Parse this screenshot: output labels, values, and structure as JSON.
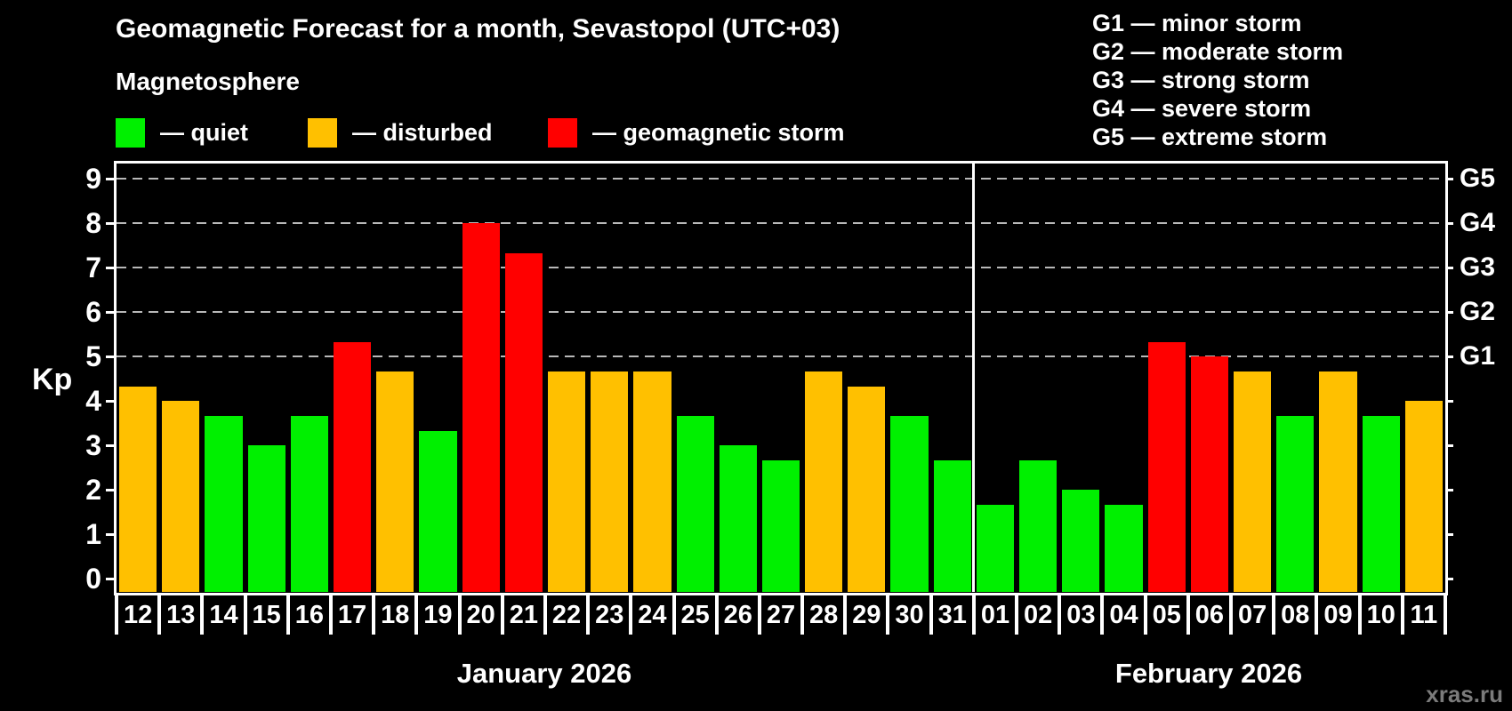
{
  "page": {
    "background": "#000000",
    "watermark": "xras.ru"
  },
  "header": {
    "title": "Geomagnetic Forecast for a month, Sevastopol (UTC+03)",
    "subtitle": "Magnetosphere",
    "series_legend": [
      {
        "name": "quiet",
        "label": "— quiet",
        "color": "#00F000"
      },
      {
        "name": "disturbed",
        "label": "— disturbed",
        "color": "#FFC000"
      },
      {
        "name": "storm",
        "label": "— geomagnetic storm",
        "color": "#FF0000"
      }
    ],
    "storm_scale_legend": [
      "G1 — minor storm",
      "G2 — moderate storm",
      "G3 — strong storm",
      "G4 — severe storm",
      "G5 — extreme storm"
    ]
  },
  "chart_data": {
    "type": "bar",
    "title": "Geomagnetic Forecast for a month, Sevastopol (UTC+03)",
    "subtitle": "Magnetosphere",
    "ylabel": "Kp",
    "ylim": [
      0,
      9
    ],
    "yticks": [
      0,
      1,
      2,
      3,
      4,
      5,
      6,
      7,
      8,
      9
    ],
    "grid": "dashed horizontal lines at Kp 5 to 9 only",
    "legend_position": "top",
    "right_axis": [
      {
        "label": "G1",
        "kp": 5
      },
      {
        "label": "G2",
        "kp": 6
      },
      {
        "label": "G3",
        "kp": 7
      },
      {
        "label": "G4",
        "kp": 8
      },
      {
        "label": "G5",
        "kp": 9
      }
    ],
    "level_colors": {
      "quiet": "#00F000",
      "disturbed": "#FFC000",
      "storm": "#FF0000"
    },
    "months": [
      {
        "label": "January 2026",
        "days": [
          {
            "day": "12",
            "kp": 4.33,
            "level": "disturbed"
          },
          {
            "day": "13",
            "kp": 4.0,
            "level": "disturbed"
          },
          {
            "day": "14",
            "kp": 3.67,
            "level": "quiet"
          },
          {
            "day": "15",
            "kp": 3.0,
            "level": "quiet"
          },
          {
            "day": "16",
            "kp": 3.67,
            "level": "quiet"
          },
          {
            "day": "17",
            "kp": 5.33,
            "level": "storm"
          },
          {
            "day": "18",
            "kp": 4.67,
            "level": "disturbed"
          },
          {
            "day": "19",
            "kp": 3.33,
            "level": "quiet"
          },
          {
            "day": "20",
            "kp": 8.0,
            "level": "storm"
          },
          {
            "day": "21",
            "kp": 7.33,
            "level": "storm"
          },
          {
            "day": "22",
            "kp": 4.67,
            "level": "disturbed"
          },
          {
            "day": "23",
            "kp": 4.67,
            "level": "disturbed"
          },
          {
            "day": "24",
            "kp": 4.67,
            "level": "disturbed"
          },
          {
            "day": "25",
            "kp": 3.67,
            "level": "quiet"
          },
          {
            "day": "26",
            "kp": 3.0,
            "level": "quiet"
          },
          {
            "day": "27",
            "kp": 2.67,
            "level": "quiet"
          },
          {
            "day": "28",
            "kp": 4.67,
            "level": "disturbed"
          },
          {
            "day": "29",
            "kp": 4.33,
            "level": "disturbed"
          },
          {
            "day": "30",
            "kp": 3.67,
            "level": "quiet"
          },
          {
            "day": "31",
            "kp": 2.67,
            "level": "quiet"
          }
        ]
      },
      {
        "label": "February 2026",
        "days": [
          {
            "day": "01",
            "kp": 1.67,
            "level": "quiet"
          },
          {
            "day": "02",
            "kp": 2.67,
            "level": "quiet"
          },
          {
            "day": "03",
            "kp": 2.0,
            "level": "quiet"
          },
          {
            "day": "04",
            "kp": 1.67,
            "level": "quiet"
          },
          {
            "day": "05",
            "kp": 5.33,
            "level": "storm"
          },
          {
            "day": "06",
            "kp": 5.0,
            "level": "storm"
          },
          {
            "day": "07",
            "kp": 4.67,
            "level": "disturbed"
          },
          {
            "day": "08",
            "kp": 3.67,
            "level": "quiet"
          },
          {
            "day": "09",
            "kp": 4.67,
            "level": "disturbed"
          },
          {
            "day": "10",
            "kp": 3.67,
            "level": "quiet"
          },
          {
            "day": "11",
            "kp": 4.0,
            "level": "disturbed"
          }
        ]
      }
    ],
    "watermark": "xras.ru"
  }
}
